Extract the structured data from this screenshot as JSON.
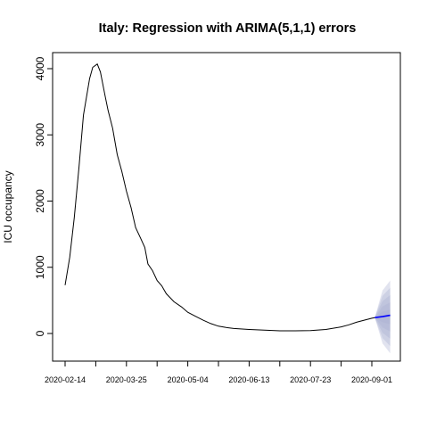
{
  "chart_data": {
    "type": "line",
    "title": "Italy: Regression with ARIMA(5,1,1) errors",
    "xlabel": "",
    "ylabel": "ICU occupancy",
    "x_ticks": [
      "2020-02-14",
      "2020-03-25",
      "2020-05-04",
      "2020-06-13",
      "2020-07-23",
      "2020-09-01"
    ],
    "xlim": [
      "2020-02-14",
      "2020-09-15"
    ],
    "ylim": [
      -420,
      4250
    ],
    "y_ticks": [
      0,
      1000,
      2000,
      3000,
      4000
    ],
    "grid": false,
    "series": [
      {
        "role": "observed",
        "color": "#000000",
        "points": [
          [
            "2020-02-14",
            730
          ],
          [
            "2020-02-17",
            1150
          ],
          [
            "2020-02-20",
            1750
          ],
          [
            "2020-02-23",
            2500
          ],
          [
            "2020-02-26",
            3300
          ],
          [
            "2020-03-01",
            3850
          ],
          [
            "2020-03-03",
            4020
          ],
          [
            "2020-03-06",
            4070
          ],
          [
            "2020-03-08",
            3950
          ],
          [
            "2020-03-11",
            3600
          ],
          [
            "2020-03-13",
            3370
          ],
          [
            "2020-03-16",
            3100
          ],
          [
            "2020-03-19",
            2700
          ],
          [
            "2020-03-22",
            2450
          ],
          [
            "2020-03-25",
            2150
          ],
          [
            "2020-03-28",
            1900
          ],
          [
            "2020-03-31",
            1600
          ],
          [
            "2020-04-03",
            1450
          ],
          [
            "2020-04-06",
            1300
          ],
          [
            "2020-04-08",
            1050
          ],
          [
            "2020-04-11",
            950
          ],
          [
            "2020-04-14",
            800
          ],
          [
            "2020-04-17",
            720
          ],
          [
            "2020-04-20",
            600
          ],
          [
            "2020-04-25",
            480
          ],
          [
            "2020-04-30",
            400
          ],
          [
            "2020-05-04",
            320
          ],
          [
            "2020-05-09",
            260
          ],
          [
            "2020-05-14",
            200
          ],
          [
            "2020-05-19",
            150
          ],
          [
            "2020-05-24",
            110
          ],
          [
            "2020-05-29",
            90
          ],
          [
            "2020-06-03",
            75
          ],
          [
            "2020-06-13",
            60
          ],
          [
            "2020-06-23",
            50
          ],
          [
            "2020-07-03",
            40
          ],
          [
            "2020-07-13",
            40
          ],
          [
            "2020-07-23",
            45
          ],
          [
            "2020-08-02",
            60
          ],
          [
            "2020-08-12",
            100
          ],
          [
            "2020-08-17",
            130
          ],
          [
            "2020-08-22",
            170
          ],
          [
            "2020-08-27",
            200
          ],
          [
            "2020-09-01",
            230
          ],
          [
            "2020-09-03",
            240
          ]
        ]
      },
      {
        "role": "forecast",
        "color": "#0000ff",
        "points": [
          [
            "2020-09-03",
            240
          ],
          [
            "2020-09-08",
            255
          ],
          [
            "2020-09-13",
            275
          ]
        ]
      }
    ],
    "forecast_interval": {
      "color": "#aab0d2",
      "points": [
        [
          "2020-09-03",
          235,
          245
        ],
        [
          "2020-09-08",
          -150,
          650
        ],
        [
          "2020-09-13",
          -300,
          800
        ]
      ]
    }
  }
}
